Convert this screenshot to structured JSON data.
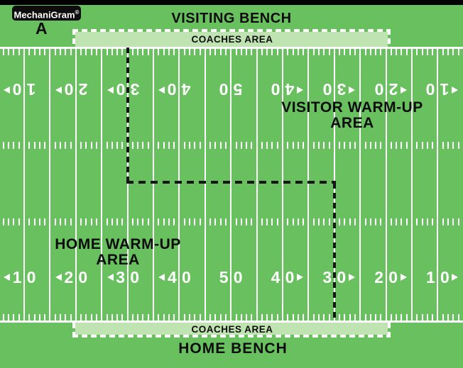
{
  "title": "MechaniGram pre-game field areas diagram",
  "logo": {
    "text": "MechaniGram",
    "registered": "®"
  },
  "diagram_label": "A",
  "top": {
    "bench_label": "VISITING BENCH",
    "coaches_label": "COACHES AREA"
  },
  "bottom": {
    "bench_label": "HOME BENCH",
    "coaches_label": "COACHES AREA"
  },
  "warmup": {
    "visitor": {
      "line1": "VISITOR WARM-UP",
      "line2": "AREA"
    },
    "home": {
      "line1": "HOME WARM-UP",
      "line2": "AREA"
    }
  },
  "field": {
    "yard_numbers": [
      {
        "label": "10",
        "tens": "1",
        "units": "0",
        "side": "left"
      },
      {
        "label": "20",
        "tens": "2",
        "units": "0",
        "side": "left"
      },
      {
        "label": "30",
        "tens": "3",
        "units": "0",
        "side": "left"
      },
      {
        "label": "40",
        "tens": "4",
        "units": "0",
        "side": "left"
      },
      {
        "label": "50",
        "tens": "5",
        "units": "0",
        "side": "center"
      },
      {
        "label": "40",
        "tens": "4",
        "units": "0",
        "side": "right"
      },
      {
        "label": "30",
        "tens": "3",
        "units": "0",
        "side": "right"
      },
      {
        "label": "20",
        "tens": "2",
        "units": "0",
        "side": "right"
      },
      {
        "label": "10",
        "tens": "1",
        "units": "0",
        "side": "right"
      }
    ],
    "colors": {
      "grass": "#69c05f",
      "coaches_strip": "#bfe3b1",
      "field_lines": "#ffffff",
      "boundary_dashes": "#ffffff",
      "divider_dashes": "#141414",
      "top_bar": "#000000",
      "text": "#0d0d0d"
    }
  }
}
